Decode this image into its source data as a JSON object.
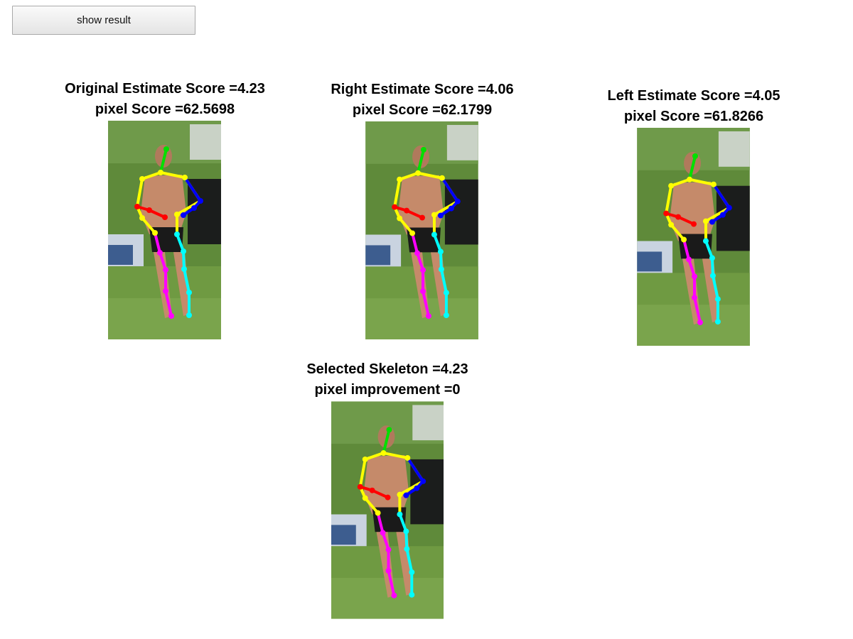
{
  "toolbar": {
    "show_result_label": "show result"
  },
  "panels": [
    {
      "id": "original",
      "line1": "Original Estimate Score =4.23",
      "line2": "pixel Score =62.5698"
    },
    {
      "id": "right",
      "line1": "Right Estimate Score =4.06",
      "line2": "pixel Score =62.1799"
    },
    {
      "id": "left",
      "line1": "Left Estimate Score =4.05",
      "line2": "pixel Score =61.8266"
    },
    {
      "id": "selected",
      "line1": "Selected Skeleton =4.23",
      "line2": "pixel improvement =0"
    }
  ],
  "skeleton_colors": {
    "head": "#00e000",
    "torso": "#ffff00",
    "right_arm": "#ff0000",
    "left_arm": "#0000ff",
    "right_leg": "#ff00ff",
    "left_leg": "#00ffff"
  }
}
